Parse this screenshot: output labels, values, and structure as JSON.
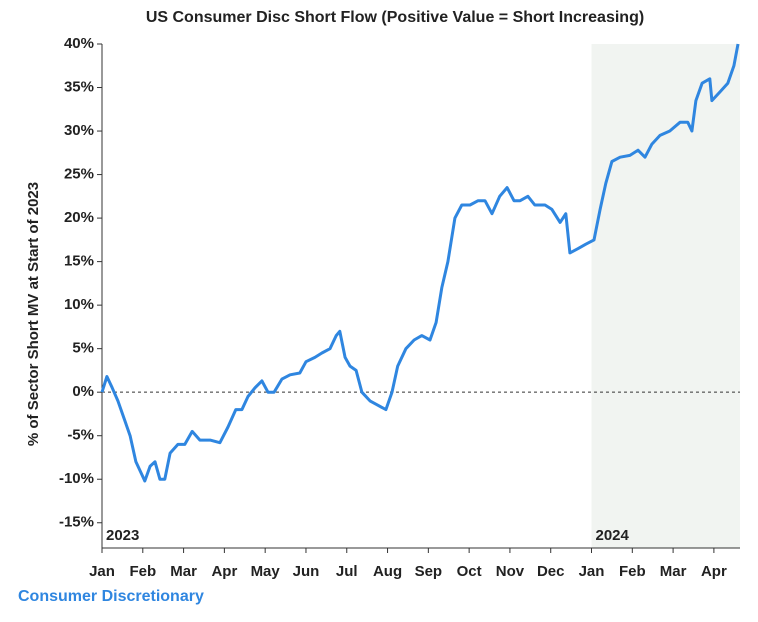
{
  "chart_data": {
    "type": "line",
    "title": "US Consumer Disc Short Flow (Positive Value = Short Increasing)",
    "y_label": "% of Sector Short MV at Start of 2023",
    "xlim": [
      0,
      15.64
    ],
    "xticks": [
      {
        "value": 0,
        "label": "Jan"
      },
      {
        "value": 1,
        "label": "Feb"
      },
      {
        "value": 2,
        "label": "Mar"
      },
      {
        "value": 3,
        "label": "Apr"
      },
      {
        "value": 4,
        "label": "May"
      },
      {
        "value": 5,
        "label": "Jun"
      },
      {
        "value": 6,
        "label": "Jul"
      },
      {
        "value": 7,
        "label": "Aug"
      },
      {
        "value": 8,
        "label": "Sep"
      },
      {
        "value": 9,
        "label": "Oct"
      },
      {
        "value": 10,
        "label": "Nov"
      },
      {
        "value": 11,
        "label": "Dec"
      },
      {
        "value": 12,
        "label": "Jan"
      },
      {
        "value": 13,
        "label": "Feb"
      },
      {
        "value": 14,
        "label": "Mar"
      },
      {
        "value": 15,
        "label": "Apr"
      }
    ],
    "ylim": [
      -17.9,
      40
    ],
    "yticks": [
      {
        "value": -15,
        "label": "-15%"
      },
      {
        "value": -10,
        "label": "-10%"
      },
      {
        "value": -5,
        "label": "-5%"
      },
      {
        "value": 0,
        "label": "0%"
      },
      {
        "value": 5,
        "label": "5%"
      },
      {
        "value": 10,
        "label": "10%"
      },
      {
        "value": 15,
        "label": "15%"
      },
      {
        "value": 20,
        "label": "20%"
      },
      {
        "value": 25,
        "label": "25%"
      },
      {
        "value": 30,
        "label": "30%"
      },
      {
        "value": 35,
        "label": "35%"
      },
      {
        "value": 40,
        "label": "40%"
      }
    ],
    "reference_line": 0,
    "shaded_from": 12,
    "annotations": [
      {
        "text": "2023",
        "x": 0
      },
      {
        "text": "2024",
        "x": 12
      }
    ],
    "x": [
      0,
      0.12,
      0.25,
      0.39,
      0.54,
      0.69,
      0.83,
      0.98,
      1.05,
      1.18,
      1.3,
      1.42,
      1.54,
      1.67,
      1.86,
      2.03,
      2.21,
      2.4,
      2.65,
      2.89,
      3.09,
      3.28,
      3.43,
      3.58,
      3.75,
      3.92,
      4.07,
      4.22,
      4.41,
      4.61,
      4.85,
      5,
      5.22,
      5.39,
      5.59,
      5.74,
      5.83,
      5.96,
      6.08,
      6.23,
      6.37,
      6.57,
      6.76,
      6.96,
      7.11,
      7.25,
      7.45,
      7.65,
      7.84,
      8.04,
      8.19,
      8.33,
      8.48,
      8.65,
      8.82,
      9.02,
      9.22,
      9.39,
      9.56,
      9.75,
      9.93,
      10.1,
      10.25,
      10.44,
      10.61,
      10.86,
      11.03,
      11.23,
      11.37,
      11.47,
      11.67,
      11.86,
      12.06,
      12.21,
      12.35,
      12.5,
      12.7,
      12.94,
      13.14,
      13.31,
      13.48,
      13.68,
      13.92,
      14.17,
      14.36,
      14.46,
      14.56,
      14.71,
      14.9,
      14.95,
      15.15,
      15.34,
      15.49,
      15.59
    ],
    "series": [
      {
        "name": "Consumer Discretionary",
        "color": "#2f86e0",
        "values": [
          0,
          1.8,
          0.5,
          -1,
          -3,
          -5,
          -8,
          -9.5,
          -10.2,
          -8.5,
          -8,
          -10,
          -10,
          -7,
          -6,
          -6,
          -4.5,
          -5.5,
          -5.5,
          -5.8,
          -4,
          -2,
          -2,
          -0.5,
          0.5,
          1.3,
          0,
          0,
          1.5,
          2,
          2.2,
          3.5,
          4,
          4.5,
          5,
          6.5,
          7,
          4,
          3,
          2.5,
          0,
          -1,
          -1.5,
          -2,
          0,
          3,
          5,
          6,
          6.5,
          6,
          8,
          12,
          15,
          20,
          21.5,
          21.5,
          22,
          22,
          20.5,
          22.5,
          23.5,
          22,
          22,
          22.5,
          21.5,
          21.5,
          21,
          19.5,
          20.5,
          16,
          16.5,
          17,
          17.5,
          21,
          24,
          26.5,
          27,
          27.2,
          27.8,
          27,
          28.5,
          29.5,
          30,
          31,
          31,
          30,
          33.5,
          35.5,
          36,
          33.5,
          34.5,
          35.5,
          37.5,
          40
        ]
      }
    ]
  }
}
